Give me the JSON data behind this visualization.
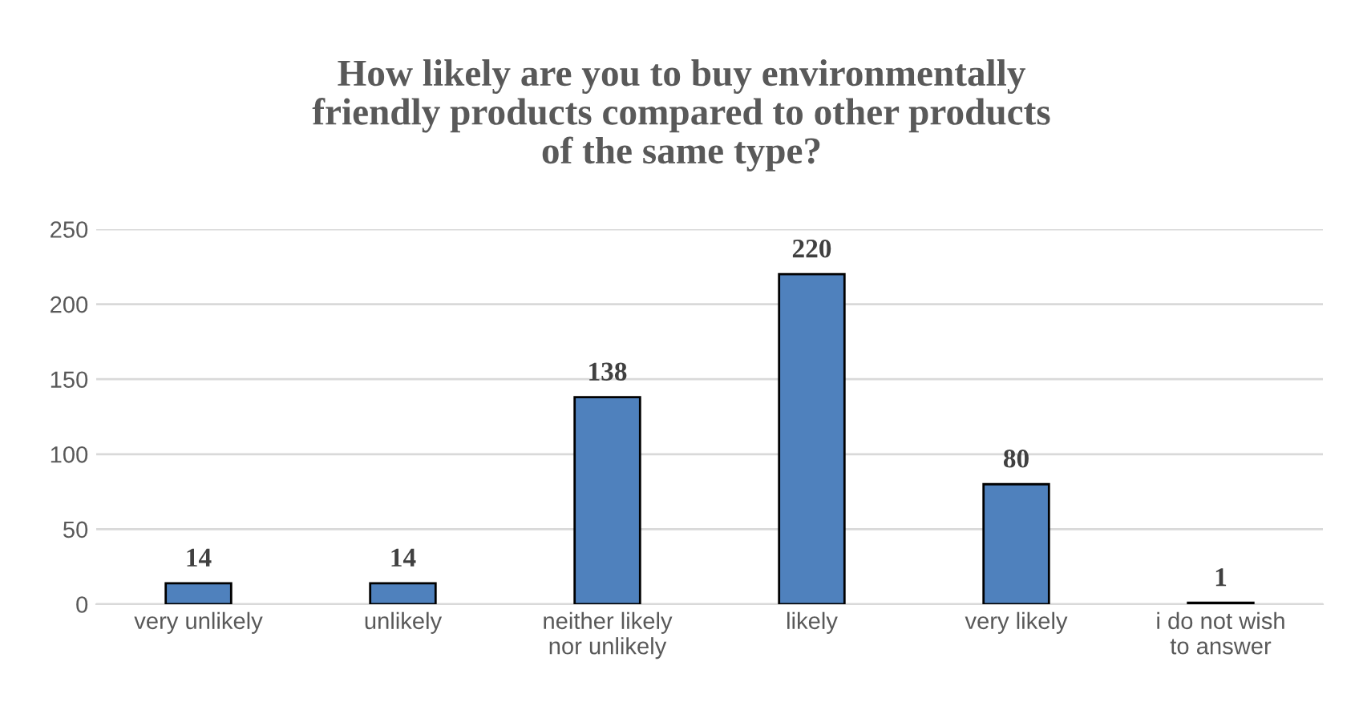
{
  "chart_data": {
    "type": "bar",
    "title": "How likely are you to buy environmentally\nfriendly products compared to other products\nof the same type?",
    "categories": [
      "very unlikely",
      "unlikely",
      "neither likely\nnor unlikely",
      "likely",
      "very likely",
      "i do not wish\nto answer"
    ],
    "values": [
      14,
      14,
      138,
      220,
      80,
      1
    ],
    "color": "#4f81bd",
    "ylim": [
      0,
      250
    ],
    "yticks": [
      0,
      50,
      100,
      150,
      200,
      250
    ],
    "grid": "y",
    "data_labels": true
  }
}
